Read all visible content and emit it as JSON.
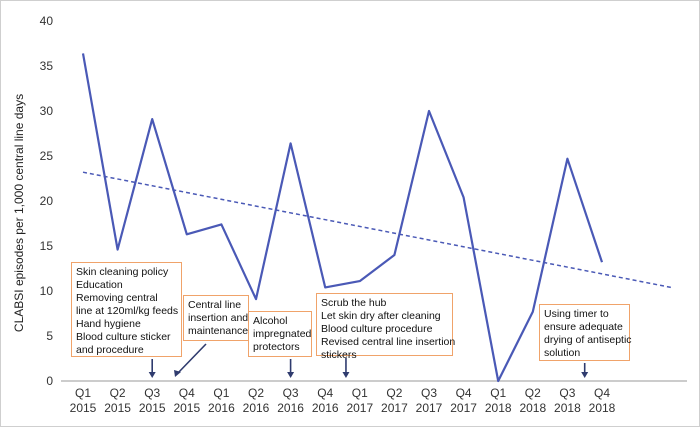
{
  "chart_data": {
    "type": "line",
    "ylabel": "CLABSI episodes per 1,000 central line days",
    "xlabel": "",
    "ylim": [
      0,
      40
    ],
    "yticks": [
      0,
      5,
      10,
      15,
      20,
      25,
      30,
      35,
      40
    ],
    "categories": [
      [
        "Q1",
        "2015"
      ],
      [
        "Q2",
        "2015"
      ],
      [
        "Q3",
        "2015"
      ],
      [
        "Q4",
        "2015"
      ],
      [
        "Q1",
        "2016"
      ],
      [
        "Q2",
        "2016"
      ],
      [
        "Q3",
        "2016"
      ],
      [
        "Q4",
        "2016"
      ],
      [
        "Q1",
        "2017"
      ],
      [
        "Q2",
        "2017"
      ],
      [
        "Q3",
        "2017"
      ],
      [
        "Q4",
        "2017"
      ],
      [
        "Q1",
        "2018"
      ],
      [
        "Q2",
        "2018"
      ],
      [
        "Q3",
        "2018"
      ],
      [
        "Q4",
        "2018"
      ]
    ],
    "series": [
      {
        "values": [
          36.4,
          14.6,
          29.1,
          16.3,
          17.4,
          9.1,
          26.4,
          10.4,
          11.1,
          14.0,
          30.0,
          20.4,
          0.0,
          7.7,
          24.7,
          13.2
        ]
      }
    ],
    "trendline": {
      "style": "dashed",
      "start": 23.2,
      "end": 10.4
    },
    "grid": false,
    "legend": "none",
    "colors": {
      "line": "#4a59b6",
      "annotation_border": "#f0a36a",
      "axis": "#999999"
    },
    "annotations": [
      {
        "lines": [
          "Skin cleaning policy",
          "Education",
          "Removing central",
          "line at 120ml/kg feeds",
          "Hand hygiene",
          "Blood culture sticker",
          "and procedure"
        ],
        "arrow_at": 2
      },
      {
        "lines": [
          "Central line",
          "insertion and",
          "maintenance"
        ],
        "arrow_at": 3.5
      },
      {
        "lines": [
          "Alcohol",
          "impregnated",
          "protectors"
        ],
        "arrow_at": 6
      },
      {
        "lines": [
          "Scrub the hub",
          "Let skin dry after cleaning",
          "Blood culture procedure",
          "Revised central line insertion",
          "stickers"
        ],
        "arrow_at": 7.6
      },
      {
        "lines": [
          "Using timer to",
          "ensure adequate",
          "drying of antiseptic",
          "solution"
        ],
        "arrow_at": 14.5
      }
    ]
  }
}
